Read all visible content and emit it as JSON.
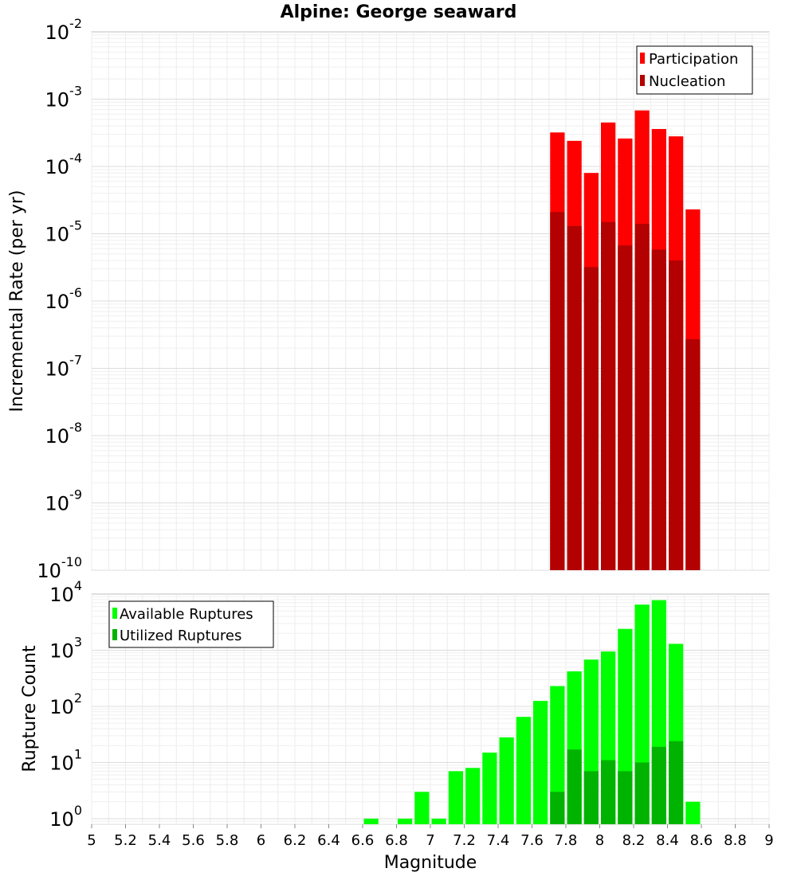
{
  "chart_data": [
    {
      "type": "bar",
      "title": "Alpine: George seaward",
      "ylabel": "Incremental Rate (per yr)",
      "xlabel": "",
      "yscale": "log",
      "ylim_exp": [
        -10,
        -2
      ],
      "xlim": [
        5,
        9
      ],
      "bin_width": 0.1,
      "legend": "top-right",
      "grid": true,
      "series": [
        {
          "name": "Participation",
          "color": "#ff0000",
          "x": [
            7.75,
            7.85,
            7.95,
            8.05,
            8.15,
            8.25,
            8.35,
            8.45,
            8.55
          ],
          "values": [
            0.00032,
            0.00024,
            8e-05,
            0.00045,
            0.00026,
            0.00068,
            0.00036,
            0.00028,
            2.3e-05
          ]
        },
        {
          "name": "Nucleation",
          "color": "#b30000",
          "x": [
            7.75,
            7.85,
            7.95,
            8.05,
            8.15,
            8.25,
            8.35,
            8.45,
            8.55
          ],
          "values": [
            2.1e-05,
            1.3e-05,
            3.2e-06,
            1.5e-05,
            6.7e-06,
            1.4e-05,
            5.8e-06,
            4e-06,
            2.7e-07
          ]
        }
      ]
    },
    {
      "type": "bar",
      "ylabel": "Rupture Count",
      "xlabel": "Magnitude",
      "yscale": "log",
      "ylim_exp": [
        -0.1,
        4
      ],
      "xlim": [
        5,
        9
      ],
      "bin_width": 0.1,
      "legend": "top-left",
      "grid": true,
      "xticks": [
        "5",
        "5.2",
        "5.4",
        "5.6",
        "5.8",
        "6",
        "6.2",
        "6.4",
        "6.6",
        "6.8",
        "7",
        "7.2",
        "7.4",
        "7.6",
        "7.8",
        "8",
        "8.2",
        "8.4",
        "8.6",
        "8.8",
        "9"
      ],
      "series": [
        {
          "name": "Available Ruptures",
          "color": "#00ff00",
          "x": [
            6.65,
            6.85,
            6.95,
            7.05,
            7.15,
            7.25,
            7.35,
            7.45,
            7.55,
            7.65,
            7.75,
            7.85,
            7.95,
            8.05,
            8.15,
            8.25,
            8.35,
            8.45,
            8.55
          ],
          "values": [
            1,
            1,
            3,
            1,
            7,
            8,
            15,
            28,
            65,
            125,
            230,
            420,
            680,
            950,
            2400,
            6500,
            7800,
            1300,
            2
          ]
        },
        {
          "name": "Utilized Ruptures",
          "color": "#00b300",
          "x": [
            7.75,
            7.85,
            7.95,
            8.05,
            8.15,
            8.25,
            8.35,
            8.45
          ],
          "values": [
            3,
            17,
            7,
            11,
            7,
            10,
            19,
            24
          ]
        }
      ]
    }
  ]
}
